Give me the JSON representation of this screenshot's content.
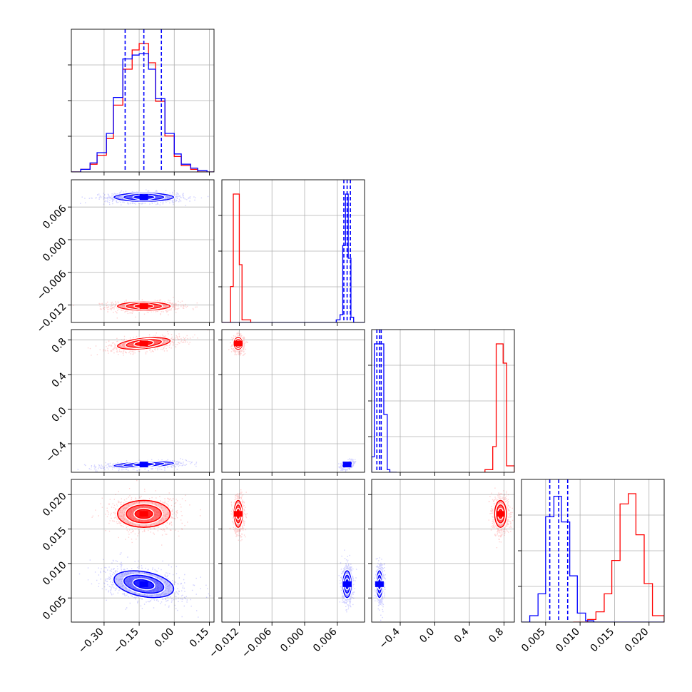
{
  "chart_data": {
    "type": "corner",
    "title": "",
    "colors": {
      "series_a": "#ff0000",
      "series_b": "#0000ff",
      "grid": "#b0b0b0",
      "frame": "#000000"
    },
    "parameters": [
      {
        "label": "",
        "range": [
          -0.44,
          0.17
        ],
        "ticks": [
          -0.3,
          -0.15,
          0.0,
          0.15
        ],
        "tick_labels": [
          "−0.30",
          "−0.15",
          "0.00",
          "0.15"
        ]
      },
      {
        "label": "",
        "range": [
          -0.0152,
          0.011
        ],
        "ticks": [
          -0.012,
          -0.006,
          0.0,
          0.006
        ],
        "tick_labels": [
          "−0.012",
          "−0.006",
          "0.000",
          "0.006"
        ]
      },
      {
        "label": "",
        "range": [
          -0.73,
          0.92
        ],
        "ticks": [
          -0.4,
          0.0,
          0.4,
          0.8
        ],
        "tick_labels": [
          "−0.4",
          "0.0",
          "0.4",
          "0.8"
        ]
      },
      {
        "label": "",
        "range": [
          0.0015,
          0.0222
        ],
        "ticks": [
          0.005,
          0.01,
          0.015,
          0.02
        ],
        "tick_labels": [
          "0.005",
          "0.010",
          "0.015",
          "0.020"
        ]
      }
    ],
    "series": [
      {
        "name": "",
        "color": "#ff0000",
        "mean": [
          -0.13,
          -0.0122,
          0.76,
          0.0172
        ],
        "sigma": [
          0.075,
          0.0005,
          0.045,
          0.0013
        ],
        "correlations": {
          "0-1": 0.0,
          "0-2": 0.45,
          "0-3": 0.0,
          "1-2": 0.0,
          "1-3": 0.0,
          "2-3": 0.0
        },
        "histograms": [
          {
            "edges": [
              -0.44,
              -0.4,
              -0.36,
              -0.33,
              -0.29,
              -0.26,
              -0.22,
              -0.18,
              -0.15,
              -0.11,
              -0.08,
              -0.04,
              0.0,
              0.03,
              0.07,
              0.1,
              0.14,
              0.17
            ],
            "counts": [
              0.0,
              0.02,
              0.06,
              0.13,
              0.26,
              0.52,
              0.8,
              0.95,
              1.0,
              0.85,
              0.55,
              0.28,
              0.12,
              0.05,
              0.02,
              0.0,
              0.0
            ]
          },
          {
            "edges": [
              -0.0152,
              -0.0136,
              -0.0131,
              -0.012,
              -0.0115,
              -0.0099
            ],
            "counts": [
              0.0,
              0.28,
              1.0,
              0.45,
              0.02
            ]
          },
          {
            "edges": [
              0.58,
              0.67,
              0.71,
              0.79,
              0.83,
              0.92
            ],
            "counts": [
              0.02,
              0.2,
              1.0,
              0.85,
              0.05
            ]
          },
          {
            "edges": [
              0.009,
              0.0111,
              0.0123,
              0.0135,
              0.0146,
              0.0158,
              0.017,
              0.0181,
              0.0193,
              0.0205,
              0.0222
            ],
            "counts": [
              0.0,
              0.02,
              0.08,
              0.22,
              0.48,
              0.92,
              1.0,
              0.68,
              0.3,
              0.05
            ]
          }
        ]
      },
      {
        "name": "",
        "color": "#0000ff",
        "mean": [
          -0.13,
          0.0078,
          -0.64,
          0.007
        ],
        "sigma": [
          0.085,
          0.0005,
          0.022,
          0.0013
        ],
        "correlations": {
          "0-1": 0.0,
          "0-2": 0.45,
          "0-3": -0.35,
          "1-2": 0.4,
          "1-3": 0.0,
          "2-3": 0.0
        },
        "quantiles": [
          [
            -0.21,
            -0.13,
            -0.055
          ],
          [
            0.0072,
            0.0078,
            0.0084
          ],
          [
            -0.67,
            -0.64,
            -0.62
          ],
          [
            0.0056,
            0.0069,
            0.0082
          ]
        ],
        "histograms": [
          {
            "edges": [
              -0.44,
              -0.4,
              -0.36,
              -0.33,
              -0.29,
              -0.26,
              -0.22,
              -0.18,
              -0.15,
              -0.11,
              -0.08,
              -0.04,
              0.0,
              0.03,
              0.07,
              0.1,
              0.14,
              0.17
            ],
            "counts": [
              0.0,
              0.02,
              0.07,
              0.15,
              0.3,
              0.58,
              0.88,
              0.91,
              0.92,
              0.8,
              0.57,
              0.3,
              0.14,
              0.06,
              0.03,
              0.01,
              0.0
            ]
          },
          {
            "edges": [
              -0.0152,
              0.0058,
              0.0065,
              0.007,
              0.0075,
              0.008,
              0.0085,
              0.009,
              0.011
            ],
            "counts": [
              0.0,
              0.02,
              0.06,
              0.6,
              1.0,
              0.5,
              0.04,
              0.0
            ]
          },
          {
            "edges": [
              -0.73,
              -0.7,
              -0.67,
              -0.63,
              -0.59,
              -0.55,
              -0.52,
              -0.48,
              -0.44
            ],
            "counts": [
              0.12,
              1.0,
              1.0,
              1.0,
              0.45,
              0.02,
              0.0,
              0.0
            ]
          },
          {
            "edges": [
              0.0015,
              0.0027,
              0.0039,
              0.005,
              0.0062,
              0.0073,
              0.0085,
              0.0096,
              0.0108,
              0.012,
              0.0222
            ],
            "counts": [
              0.0,
              0.05,
              0.22,
              0.82,
              0.98,
              0.78,
              0.36,
              0.07,
              0.01,
              0.0
            ]
          }
        ]
      }
    ],
    "contour_levels": [
      0.5,
      1.0,
      1.5
    ],
    "grid": true
  }
}
